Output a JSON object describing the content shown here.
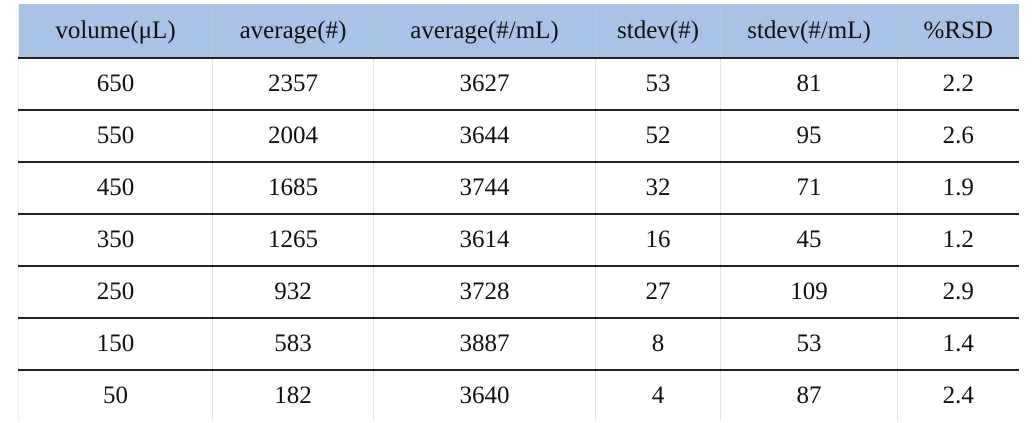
{
  "table": {
    "headers": [
      "volume(μL)",
      "average(#)",
      "average(#/mL)",
      "stdev(#)",
      "stdev(#/mL)",
      "%RSD"
    ],
    "rows": [
      [
        650,
        2357,
        3627,
        53,
        81,
        2.2
      ],
      [
        550,
        2004,
        3644,
        52,
        95,
        2.6
      ],
      [
        450,
        1685,
        3744,
        32,
        71,
        1.9
      ],
      [
        350,
        1265,
        3614,
        16,
        45,
        1.2
      ],
      [
        250,
        932,
        3728,
        27,
        109,
        2.9
      ],
      [
        150,
        583,
        3887,
        8,
        53,
        1.4
      ],
      [
        50,
        182,
        3640,
        4,
        87,
        2.4
      ]
    ]
  }
}
